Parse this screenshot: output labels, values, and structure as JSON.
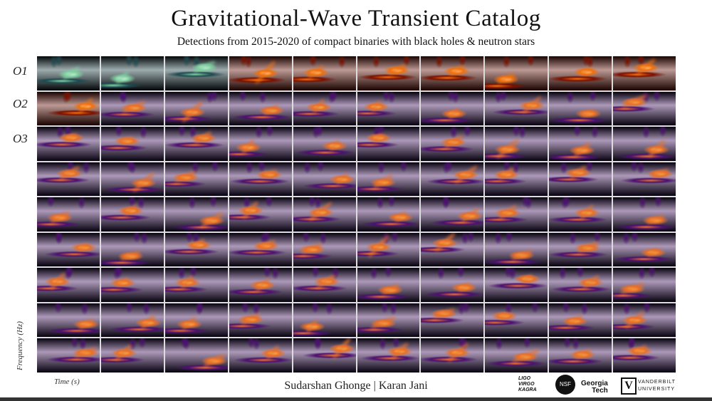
{
  "header": {
    "title": "Gravitational-Wave Transient Catalog",
    "subtitle": "Detections from 2015-2020 of compact binaries with black holes & neutron stars"
  },
  "runs": [
    "O1",
    "O2",
    "O3"
  ],
  "axes": {
    "ylabel": "Frequency (Hz)",
    "xlabel": "Time (s)"
  },
  "grid": {
    "columns": 10,
    "rows": 9,
    "colormaps": [
      [
        "teal",
        "teal",
        "teal",
        "hot",
        "hot",
        "hot",
        "hot",
        "hot",
        "hot",
        "hot"
      ],
      [
        "hot",
        "inferno",
        "inferno",
        "inferno",
        "inferno",
        "inferno",
        "inferno",
        "inferno",
        "inferno",
        "inferno"
      ],
      [
        "inferno",
        "inferno",
        "inferno",
        "inferno",
        "inferno",
        "inferno",
        "inferno",
        "inferno",
        "inferno",
        "inferno"
      ],
      [
        "inferno",
        "inferno",
        "inferno",
        "inferno",
        "inferno",
        "inferno",
        "inferno",
        "inferno",
        "inferno",
        "inferno"
      ],
      [
        "inferno",
        "inferno",
        "inferno",
        "inferno",
        "inferno",
        "inferno",
        "inferno",
        "inferno",
        "inferno",
        "inferno"
      ],
      [
        "inferno",
        "inferno",
        "inferno",
        "inferno",
        "inferno",
        "inferno",
        "inferno",
        "inferno",
        "inferno",
        "inferno"
      ],
      [
        "inferno",
        "inferno",
        "inferno",
        "inferno",
        "inferno",
        "inferno",
        "inferno",
        "inferno",
        "inferno",
        "inferno"
      ],
      [
        "inferno",
        "inferno",
        "inferno",
        "inferno",
        "inferno",
        "inferno",
        "inferno",
        "inferno",
        "inferno",
        "inferno"
      ],
      [
        "inferno",
        "inferno",
        "inferno",
        "inferno",
        "inferno",
        "inferno",
        "inferno",
        "inferno",
        "inferno",
        "inferno"
      ]
    ]
  },
  "footer": {
    "authors": "Sudarshan Ghonge | Karan Jani",
    "logos": [
      "LIGO VIRGO KAGRA",
      "NSF",
      "Georgia Tech",
      "VANDERBILT UNIVERSITY"
    ]
  }
}
